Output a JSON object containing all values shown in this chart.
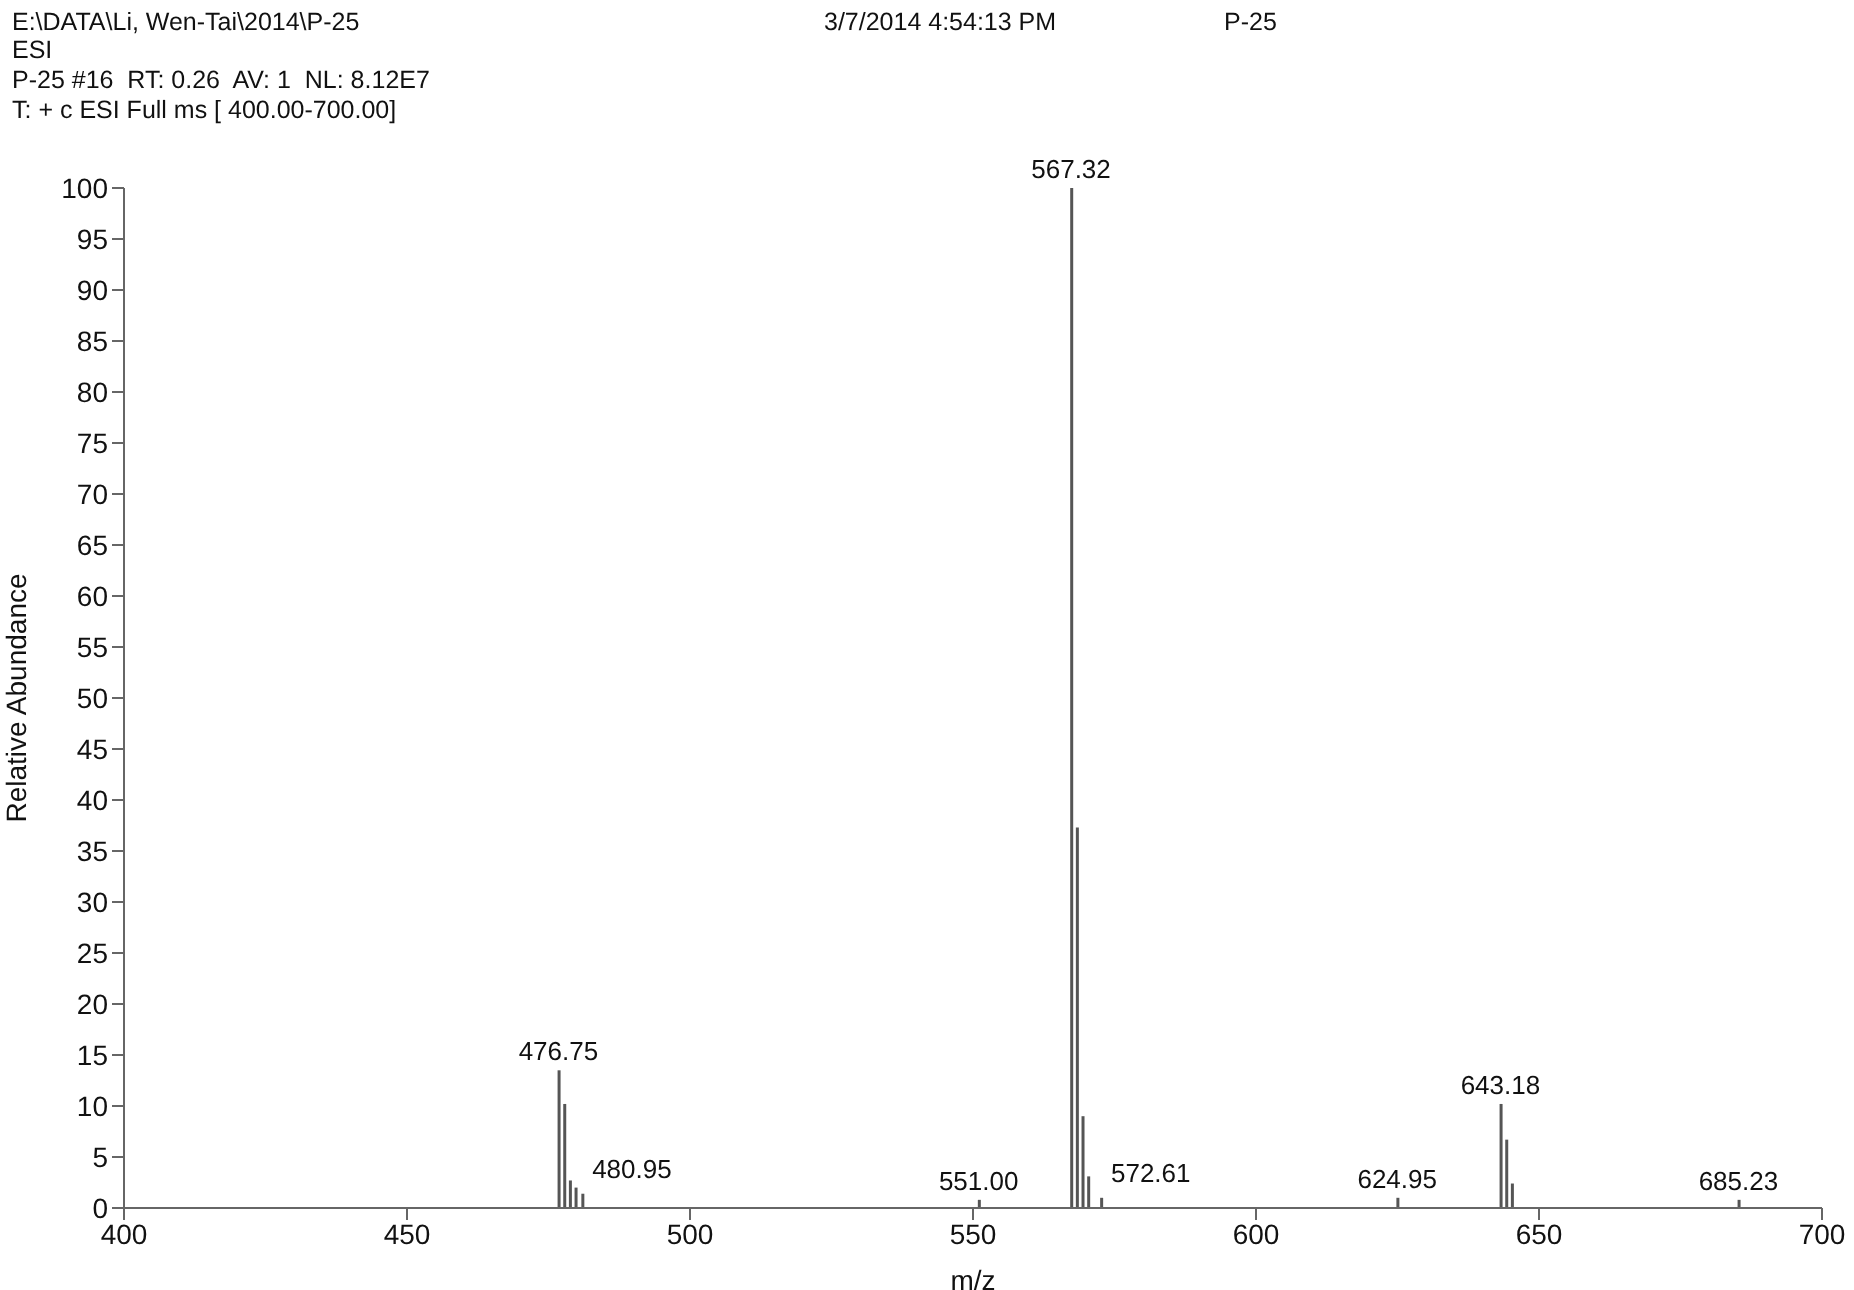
{
  "chart_data": {
    "type": "bar",
    "xlabel": "m/z",
    "ylabel": "Relative Abundance",
    "annotations": [
      "E:\\DATA\\Li, Wen-Tai\\2014\\P-25",
      "ESI",
      "P-25 #16  RT: 0.26  AV: 1  NL: 8.12E7",
      "T: + c ESI Full ms [ 400.00-700.00]",
      "3/7/2014 4:54:13 PM",
      "P-25",
      {
        "text": "476.75",
        "x": 476.75,
        "y": 13.5
      },
      {
        "text": "480.95",
        "x": 480.95,
        "y": 1.4
      },
      {
        "text": "551.00",
        "x": 551.0,
        "y": 0.8
      },
      {
        "text": "567.32",
        "x": 567.32,
        "y": 100
      },
      {
        "text": "572.61",
        "x": 572.61,
        "y": 1
      },
      {
        "text": "624.95",
        "x": 624.95,
        "y": 1
      },
      {
        "text": "643.18",
        "x": 643.18,
        "y": 10.2
      },
      {
        "text": "685.23",
        "x": 685.23,
        "y": 0.8
      }
    ],
    "x": [
      476.75,
      477.75,
      478.75,
      479.75,
      480.95,
      551.0,
      567.32,
      568.32,
      569.32,
      570.32,
      572.61,
      624.95,
      643.18,
      644.18,
      645.18,
      685.23
    ],
    "values": [
      13.5,
      10.2,
      2.7,
      2,
      1.4,
      0.8,
      100,
      37.3,
      9,
      3.1,
      1,
      1,
      10.2,
      6.7,
      2.4,
      0.8
    ],
    "color": "#555555",
    "xlim": [
      400,
      700
    ],
    "xticks": [
      400,
      450,
      500,
      550,
      600,
      650,
      700
    ],
    "ylim": [
      0,
      100
    ],
    "yticks": [
      0,
      5,
      10,
      15,
      20,
      25,
      30,
      35,
      40,
      45,
      50,
      55,
      60,
      65,
      70,
      75,
      80,
      85,
      90,
      95,
      100
    ]
  }
}
